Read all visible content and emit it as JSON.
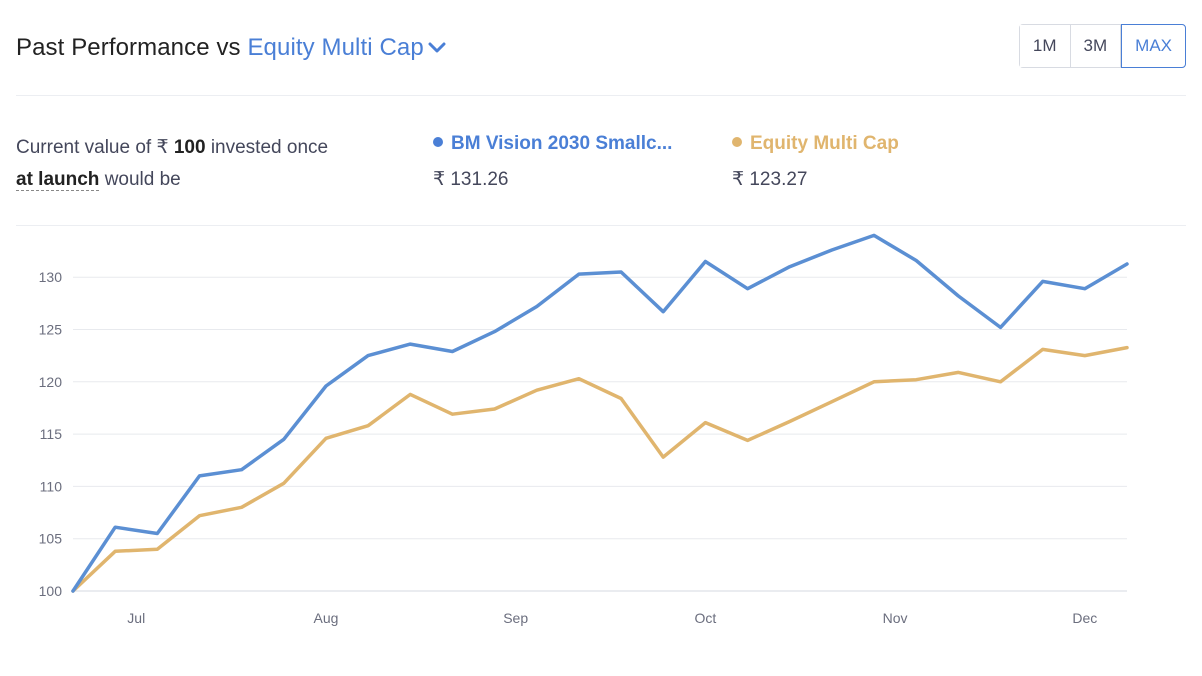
{
  "header": {
    "title_prefix": "Past Performance vs",
    "compare_label": "Equity Multi Cap",
    "ranges": [
      "1M",
      "3M",
      "MAX"
    ],
    "active_range": "MAX"
  },
  "summary": {
    "line1_pre": "Current value of",
    "currency": "₹",
    "amount": "100",
    "line1_post": "invested once",
    "launch_label": "at launch",
    "line2_post": "would be"
  },
  "legend": [
    {
      "name": "BM Vision 2030 Smallc...",
      "value": "₹ 131.26",
      "color": "#4a7fd6"
    },
    {
      "name": "Equity Multi Cap",
      "value": "₹ 123.27",
      "color": "#e0b56e"
    }
  ],
  "chart_data": {
    "type": "line",
    "ylim": [
      100,
      135
    ],
    "yticks": [
      100,
      105,
      110,
      115,
      120,
      125,
      130
    ],
    "x_tick_labels": [
      "Jul",
      "Aug",
      "Sep",
      "Oct",
      "Nov",
      "Dec"
    ],
    "x_tick_positions": [
      1.5,
      6,
      10.5,
      15,
      19.5,
      24
    ],
    "series": [
      {
        "name": "BM Vision 2030 Smallc...",
        "color": "#5b8fd3",
        "values": [
          100,
          106.1,
          105.5,
          111.0,
          111.6,
          114.5,
          119.6,
          122.5,
          123.6,
          122.9,
          124.8,
          127.2,
          130.3,
          130.5,
          126.7,
          131.5,
          128.9,
          131.0,
          132.6,
          134.0,
          131.6,
          128.2,
          125.2,
          129.6,
          128.9,
          131.26
        ]
      },
      {
        "name": "Equity Multi Cap",
        "color": "#e0b56e",
        "values": [
          100,
          103.8,
          104.0,
          107.2,
          108.0,
          110.3,
          114.6,
          115.8,
          118.8,
          116.9,
          117.4,
          119.2,
          120.3,
          118.4,
          112.8,
          116.1,
          114.4,
          116.2,
          118.1,
          120.0,
          120.2,
          120.9,
          120.0,
          123.1,
          122.5,
          123.27
        ]
      }
    ]
  }
}
